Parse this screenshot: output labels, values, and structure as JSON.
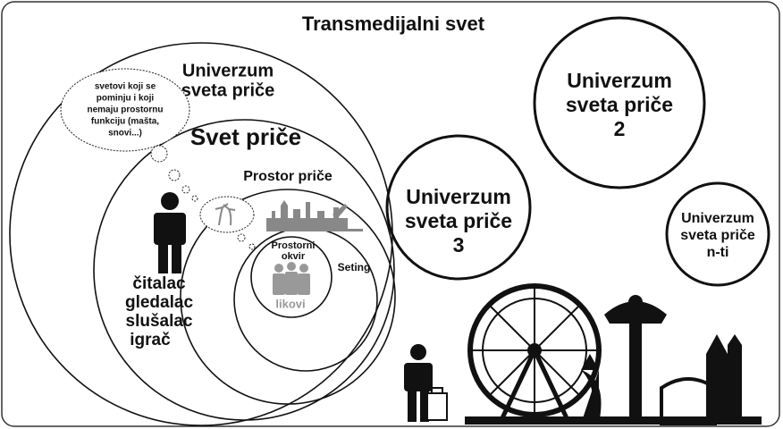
{
  "title": "Transmedijalni svet",
  "story_universe": [
    "Univerzum",
    "sveta priče"
  ],
  "thought_bubble": [
    "svetovi koji se",
    "pominju i koji",
    "nemaju prostornu",
    "funkciju (mašta,",
    "snovi...)"
  ],
  "story_world": "Svet priče",
  "story_space": "Prostor priče",
  "spatial_frame": [
    "Prostorni",
    "okvir"
  ],
  "setting": "Seting",
  "characters": "likovi",
  "audience": [
    "čitalac",
    "gledalac",
    "slušalac",
    "igrač"
  ],
  "universe_2": [
    "Univerzum",
    "sveta priče",
    "2"
  ],
  "universe_3": [
    "Univerzum",
    "sveta priče",
    "3"
  ],
  "universe_n": [
    "Univerzum",
    "sveta priče",
    "n-ti"
  ]
}
